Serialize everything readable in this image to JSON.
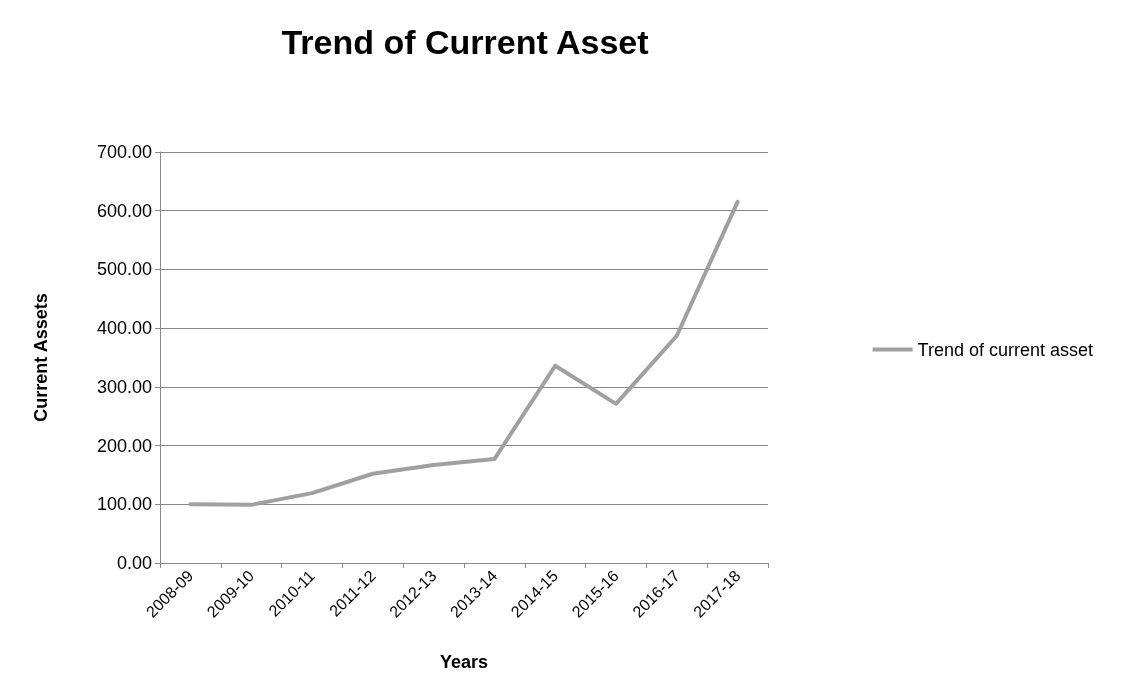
{
  "chart_data": {
    "type": "line",
    "title": "Trend of Current Asset",
    "xlabel": "Years",
    "ylabel": "Current Assets",
    "categories": [
      "2008-09",
      "2009-10",
      "2010-11",
      "2011-12",
      "2012-13",
      "2013-14",
      "2014-15",
      "2015-16",
      "2016-17",
      "2017-18"
    ],
    "series": [
      {
        "name": "Trend of current asset",
        "color": "#a0a0a0",
        "values": [
          100,
          99,
          119,
          152,
          167,
          177,
          336,
          271,
          387,
          615
        ]
      }
    ],
    "ylim": [
      0,
      700
    ],
    "yticks": [
      {
        "value": 0,
        "label": "0.00"
      },
      {
        "value": 100,
        "label": "100.00"
      },
      {
        "value": 200,
        "label": "200.00"
      },
      {
        "value": 300,
        "label": "300.00"
      },
      {
        "value": 400,
        "label": "400.00"
      },
      {
        "value": 500,
        "label": "500.00"
      },
      {
        "value": 600,
        "label": "600.00"
      },
      {
        "value": 700,
        "label": "700.00"
      }
    ],
    "grid": "y",
    "legend": "right",
    "marker": "none",
    "line_style": "solid"
  }
}
